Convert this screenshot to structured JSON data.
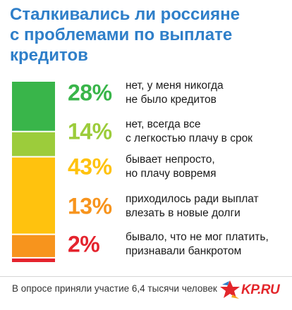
{
  "title_lines": [
    "Сталкивались ли россияне",
    "с проблемами по выплате",
    "кредитов"
  ],
  "footer": "В опросе приняли участие 6,4 тысячи человек",
  "logo": "KP.RU",
  "chart_data": {
    "type": "bar",
    "orientation": "stacked-vertical",
    "title": "Сталкивались ли россияне с проблемами по выплате кредитов",
    "unit": "%",
    "categories": [
      "нет, у меня никогда не было кредитов",
      "нет, всегда все с легкостью плачу в срок",
      "бывает непросто, но плачу вовремя",
      "приходилось ради выплат влезать в новые долги",
      "бывало, что не мог платить, признавали банкротом"
    ],
    "values": [
      28,
      14,
      43,
      13,
      2
    ],
    "colors": [
      "#39b54a",
      "#9ccc3b",
      "#ffc20e",
      "#f7941d",
      "#e4232d"
    ],
    "items": [
      {
        "pct": "28%",
        "line1": "нет, у меня никогда",
        "line2": "не было кредитов",
        "color": "#39b54a"
      },
      {
        "pct": "14%",
        "line1": "нет, всегда все",
        "line2": "с легкостью плачу в срок",
        "color": "#9ccc3b"
      },
      {
        "pct": "43%",
        "line1": "бывает непросто,",
        "line2": "но плачу вовремя",
        "color": "#ffc20e"
      },
      {
        "pct": "13%",
        "line1": "приходилось ради выплат",
        "line2": "влезать в новые долги",
        "color": "#f7941d"
      },
      {
        "pct": "2%",
        "line1": "бывало, что не мог платить,",
        "line2": "признавали банкротом",
        "color": "#e4232d"
      }
    ]
  }
}
